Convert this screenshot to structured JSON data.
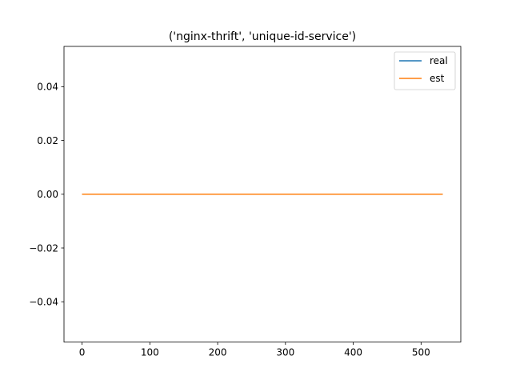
{
  "chart_data": {
    "type": "line",
    "title": "('nginx-thrift', 'unique-id-service')",
    "xlabel": "",
    "ylabel": "",
    "xlim": [
      -26.6,
      558.6
    ],
    "ylim": [
      -0.055,
      0.055
    ],
    "xticks": [
      0,
      100,
      200,
      300,
      400,
      500
    ],
    "yticks": [
      -0.04,
      -0.02,
      0.0,
      0.02,
      0.04
    ],
    "xtick_labels": [
      "0",
      "100",
      "200",
      "300",
      "400",
      "500"
    ],
    "ytick_labels": [
      "−0.04",
      "−0.02",
      "0.00",
      "0.02",
      "0.04"
    ],
    "grid": false,
    "legend_position": "upper right",
    "series": [
      {
        "name": "real",
        "color": "#1f77b4",
        "x": [
          0,
          532
        ],
        "y": [
          0,
          0
        ]
      },
      {
        "name": "est",
        "color": "#ff7f0e",
        "x": [
          0,
          532
        ],
        "y": [
          0,
          0
        ]
      }
    ]
  }
}
